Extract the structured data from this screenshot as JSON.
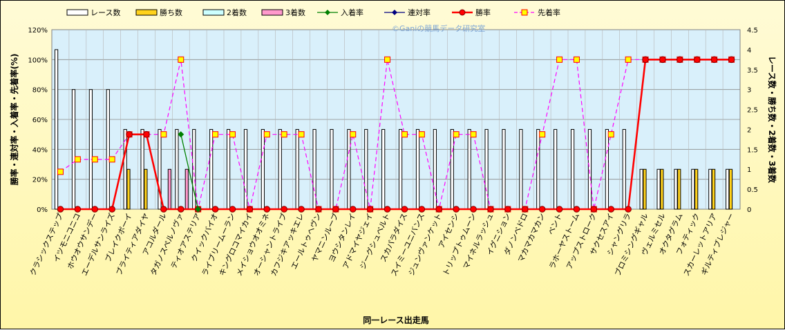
{
  "chart_data": {
    "type": "bar",
    "watermark": "©Ganiの競馬データ研究室",
    "xlabel": "同一レース出走馬",
    "ylabel_left": "勝率・連対率・入着率・先着率(%)",
    "ylabel_right": "レース数・勝ち数・2着数・3着数",
    "ylim_left": [
      0,
      120
    ],
    "ylim_right": [
      0,
      4.5
    ],
    "yticks_left": [
      "0%",
      "20%",
      "40%",
      "60%",
      "80%",
      "100%",
      "120%"
    ],
    "yticks_right": [
      "0",
      "0.5",
      "1",
      "1.5",
      "2",
      "2.5",
      "3",
      "3.5",
      "4",
      "4.5"
    ],
    "grid": true,
    "legend_position": "top",
    "colors": {
      "races": "#ffffff",
      "wins": "#ffd21c",
      "second": "#ccffff",
      "third": "#ff99cc",
      "place_rate": "#008000",
      "quinella_rate": "#000080",
      "win_rate": "#ff0000",
      "ahead_rate": "#ff00ff",
      "plot_bg": "#d9f0fb",
      "grid": "#8a8a8a"
    },
    "categories": [
      "クラシックステップ",
      "イツモニコニコ",
      "ホウオウサンデー",
      "エーデルサンライズ",
      "ブレイクボーイ",
      "ブライティアダイヤ",
      "アコルダール",
      "タガノスペルノヴァ",
      "ティオアステリア",
      "クイックバイオ",
      "ライブリームーラン",
      "キングロコマイカイ",
      "メイショウオオミネ",
      "オーシャントライブ",
      "カフジキアッキエレ",
      "エールトゥヘヴン",
      "ヤマニンルーブ",
      "ヨウシタンレイ",
      "アドマイヤジェイ",
      "ジーグシュベルト",
      "スカパラダイス",
      "スイミーユニバンス",
      "ジュンヴァンケット",
      "アイセンシ",
      "トリップトゥムーン",
      "マイネルラッシュ",
      "イグニション",
      "ダノンベドロ",
      "マカマカマカン",
      "ベント",
      "ラホーヤストーム",
      "アップストローク",
      "サクセスアイ",
      "シャングリラ",
      "ブロミシングギャル",
      "ヴェルミセル",
      "オクタグラム",
      "フォティック",
      "スカーレットアリア",
      "ギルティブレジャー"
    ],
    "series": [
      {
        "name": "レース数",
        "kind": "bar",
        "axis": "right",
        "values": [
          4,
          3,
          3,
          3,
          2,
          2,
          2,
          2,
          2,
          2,
          2,
          2,
          2,
          2,
          2,
          2,
          2,
          2,
          2,
          2,
          2,
          2,
          2,
          2,
          2,
          2,
          2,
          2,
          2,
          2,
          2,
          2,
          2,
          2,
          1,
          1,
          1,
          1,
          1,
          1
        ]
      },
      {
        "name": "勝ち数",
        "kind": "bar",
        "axis": "right",
        "values": [
          0,
          0,
          0,
          0,
          1,
          1,
          0,
          0,
          0,
          0,
          0,
          0,
          0,
          0,
          0,
          0,
          0,
          0,
          0,
          0,
          0,
          0,
          0,
          0,
          0,
          0,
          0,
          0,
          0,
          0,
          0,
          0,
          0,
          0,
          1,
          1,
          1,
          1,
          1,
          1
        ]
      },
      {
        "name": "2着数",
        "kind": "bar",
        "axis": "right",
        "values": [
          0,
          0,
          0,
          0,
          0,
          0,
          0,
          0,
          0,
          0,
          0,
          0,
          0,
          0,
          0,
          0,
          0,
          0,
          0,
          0,
          0,
          0,
          0,
          0,
          0,
          0,
          0,
          0,
          0,
          0,
          0,
          0,
          0,
          0,
          0,
          0,
          0,
          0,
          0,
          0
        ]
      },
      {
        "name": "3着数",
        "kind": "bar",
        "axis": "right",
        "values": [
          0,
          0,
          0,
          0,
          0,
          0,
          1,
          1,
          0,
          0,
          0,
          0,
          0,
          0,
          0,
          0,
          0,
          0,
          0,
          0,
          0,
          0,
          0,
          0,
          0,
          0,
          0,
          0,
          0,
          0,
          0,
          0,
          0,
          0,
          0,
          0,
          0,
          0,
          0,
          0
        ]
      },
      {
        "name": "入着率",
        "kind": "line",
        "axis": "left",
        "values": [
          null,
          null,
          null,
          null,
          null,
          null,
          null,
          50,
          0,
          null,
          null,
          null,
          null,
          null,
          null,
          null,
          null,
          null,
          null,
          null,
          null,
          null,
          null,
          null,
          null,
          null,
          null,
          null,
          null,
          null,
          null,
          null,
          null,
          null,
          null,
          null,
          null,
          null,
          null,
          null
        ]
      },
      {
        "name": "連対率",
        "kind": "line",
        "axis": "left",
        "values": [
          null,
          null,
          null,
          null,
          null,
          null,
          null,
          null,
          null,
          null,
          null,
          null,
          null,
          null,
          null,
          null,
          null,
          null,
          null,
          null,
          null,
          null,
          null,
          null,
          null,
          null,
          null,
          null,
          null,
          null,
          null,
          null,
          null,
          null,
          null,
          null,
          null,
          null,
          null,
          null
        ]
      },
      {
        "name": "勝率",
        "kind": "line",
        "axis": "left",
        "values": [
          0,
          0,
          0,
          0,
          50,
          50,
          0,
          0,
          0,
          0,
          0,
          0,
          0,
          0,
          0,
          0,
          0,
          0,
          0,
          0,
          0,
          0,
          0,
          0,
          0,
          0,
          0,
          0,
          0,
          0,
          0,
          0,
          0,
          0,
          100,
          100,
          100,
          100,
          100,
          100
        ]
      },
      {
        "name": "先着率",
        "kind": "line",
        "axis": "left",
        "values": [
          25,
          33.3,
          33.3,
          33.3,
          50,
          50,
          50,
          100,
          0,
          50,
          50,
          0,
          50,
          50,
          50,
          0,
          0,
          50,
          0,
          100,
          50,
          50,
          0,
          50,
          50,
          0,
          0,
          0,
          50,
          100,
          100,
          0,
          50,
          100,
          100,
          100,
          100,
          100,
          100,
          100
        ]
      }
    ]
  }
}
